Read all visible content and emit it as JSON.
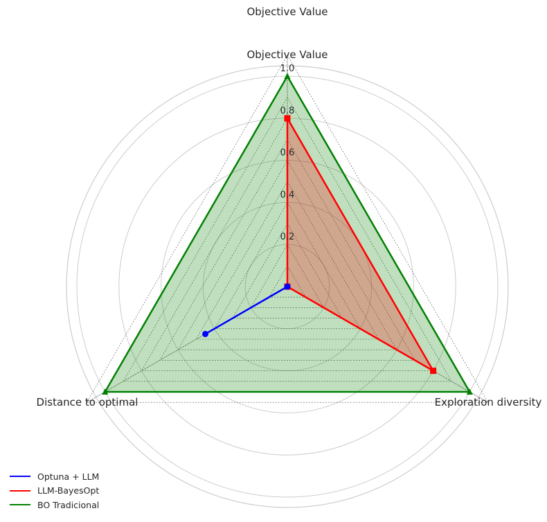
{
  "chart_data": {
    "type": "radar",
    "title": "Objective Value",
    "axes": [
      "Objective Value",
      "Exploration diversity",
      "Distance to optimal"
    ],
    "radial_ticks": [
      "0.2",
      "0.4",
      "0.6",
      "0.8",
      "1.0"
    ],
    "rlim": [
      0,
      1
    ],
    "grid": true,
    "legend_position": "bottom-left",
    "series": [
      {
        "name": "Optuna + LLM",
        "values": [
          0.0,
          0.0,
          0.45
        ],
        "color": "#0000ff",
        "marker": "circle"
      },
      {
        "name": "LLM-BayesOpt",
        "values": [
          0.8,
          0.8,
          0.0
        ],
        "color": "#ff0000",
        "marker": "square"
      },
      {
        "name": "BO Tradicional",
        "values": [
          1.0,
          1.0,
          1.0
        ],
        "color": "#008000",
        "marker": "triangle",
        "fill": true
      }
    ]
  }
}
